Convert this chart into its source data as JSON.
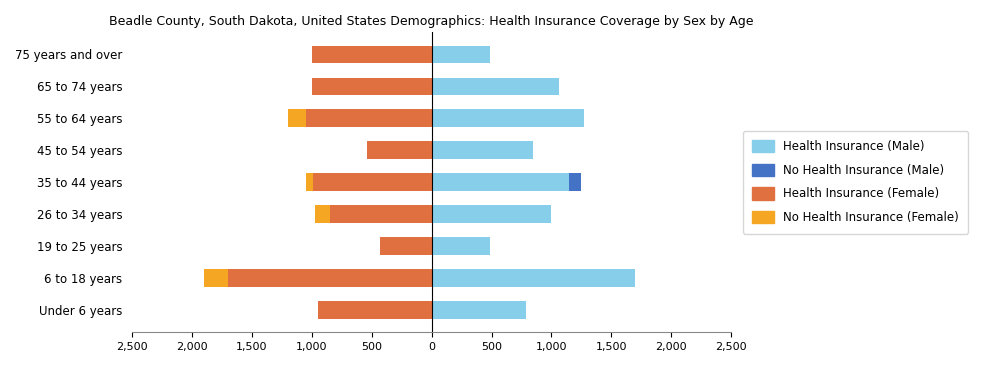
{
  "title": "Beadle County, South Dakota, United States Demographics: Health Insurance Coverage by Sex by Age",
  "age_groups": [
    "Under 6 years",
    "6 to 18 years",
    "19 to 25 years",
    "26 to 34 years",
    "35 to 44 years",
    "45 to 54 years",
    "55 to 64 years",
    "65 to 74 years",
    "75 years and over"
  ],
  "health_ins_male": [
    790,
    1700,
    490,
    1000,
    1150,
    850,
    1270,
    1060,
    490
  ],
  "no_health_ins_male": [
    0,
    0,
    0,
    0,
    100,
    0,
    0,
    0,
    0
  ],
  "health_ins_female": [
    950,
    1700,
    430,
    850,
    990,
    540,
    1050,
    1000,
    1000
  ],
  "no_health_ins_female": [
    0,
    200,
    0,
    120,
    60,
    0,
    150,
    0,
    0
  ],
  "color_health_male": "#87CEEB",
  "color_no_health_male": "#4472C4",
  "color_health_female": "#E07040",
  "color_no_health_female": "#F5A623",
  "xlim": 2500,
  "xtick_vals": [
    -2500,
    -2000,
    -1500,
    -1000,
    -500,
    0,
    500,
    1000,
    1500,
    2000,
    2500
  ],
  "xtick_labels": [
    "2,500",
    "2,000",
    "1,500",
    "1,000",
    "500",
    "0",
    "500",
    "1,000",
    "1,500",
    "2,000",
    "2,500"
  ]
}
